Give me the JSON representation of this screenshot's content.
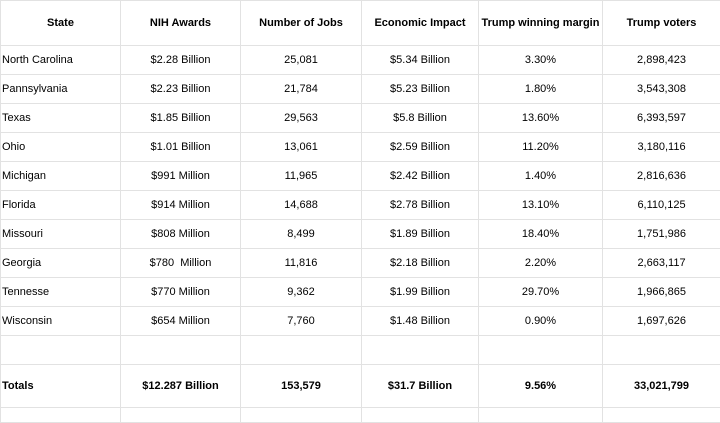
{
  "table": {
    "headers": [
      "State",
      "NIH Awards",
      "Number of Jobs",
      "Economic Impact",
      "Trump winning margin",
      "Trump voters"
    ],
    "rows": [
      [
        "North Carolina",
        "$2.28 Billion",
        "25,081",
        "$5.34 Billion",
        "3.30%",
        "2,898,423"
      ],
      [
        "Pannsylvania",
        "$2.23 Billion",
        "21,784",
        "$5.23 Billion",
        "1.80%",
        "3,543,308"
      ],
      [
        "Texas",
        "$1.85 Billion",
        "29,563",
        "$5.8 Billion",
        "13.60%",
        "6,393,597"
      ],
      [
        "Ohio",
        "$1.01 Billion",
        "13,061",
        "$2.59 Billion",
        "11.20%",
        "3,180,116"
      ],
      [
        "Michigan",
        "$991 Million",
        "11,965",
        "$2.42 Billion",
        "1.40%",
        "2,816,636"
      ],
      [
        "Florida",
        "$914 Million",
        "14,688",
        "$2.78 Billion",
        "13.10%",
        "6,110,125"
      ],
      [
        "Missouri",
        "$808 Million",
        "8,499",
        "$1.89 Billion",
        "18.40%",
        "1,751,986"
      ],
      [
        "Georgia",
        "$780  Million",
        "11,816",
        "$2.18 Billion",
        "2.20%",
        "2,663,117"
      ],
      [
        "Tennesse",
        "$770 Million",
        "9,362",
        "$1.99 Billion",
        "29.70%",
        "1,966,865"
      ],
      [
        "Wisconsin",
        "$654 Million",
        "7,760",
        "$1.48 Billion",
        "0.90%",
        "1,697,626"
      ]
    ],
    "totals": [
      "Totals",
      "$12.287 Billion",
      "153,579",
      "$31.7 Billion",
      "9.56%",
      "33,021,799"
    ]
  }
}
